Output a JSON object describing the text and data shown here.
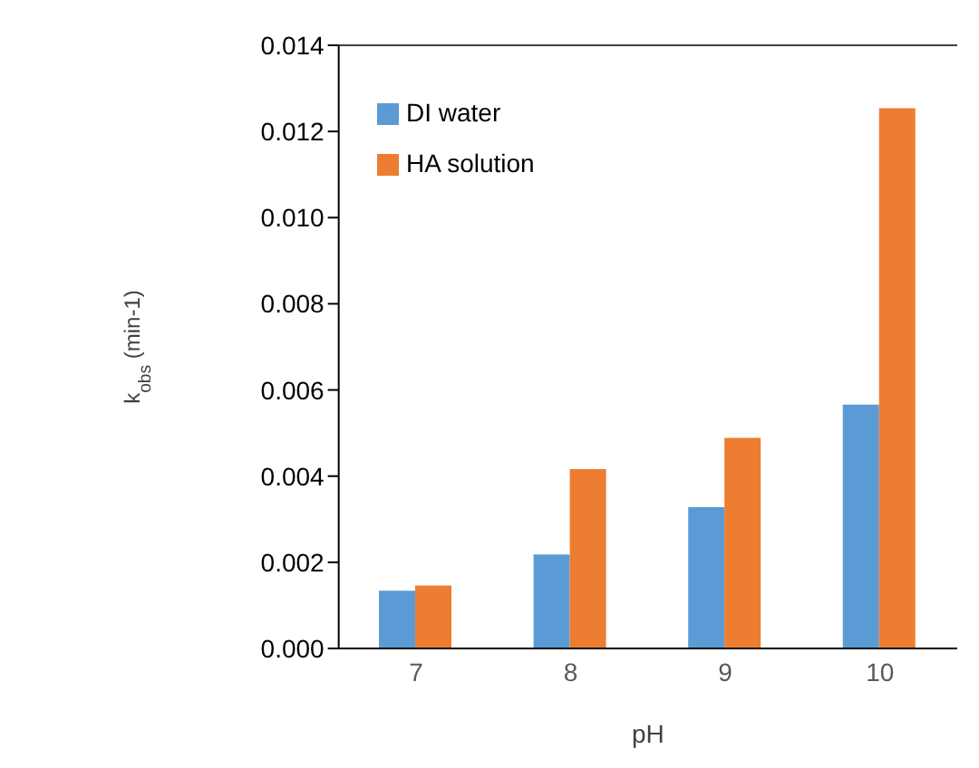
{
  "chart_data": {
    "type": "bar",
    "xlabel": "pH",
    "ylabel": "k$_{obs}$ (min-1)",
    "categories": [
      "7",
      "8",
      "9",
      "10"
    ],
    "series": [
      {
        "name": "DI water",
        "color": "#5b9bd5",
        "values": [
          0.00134,
          0.00218,
          0.00328,
          0.00566
        ]
      },
      {
        "name": "HA solution",
        "color": "#ed7d31",
        "values": [
          0.00146,
          0.00416,
          0.00489,
          0.01254
        ]
      }
    ],
    "ylim": [
      0,
      0.014
    ],
    "yticks": [
      {
        "value": 0,
        "label": "0.000"
      },
      {
        "value": 0.002,
        "label": "0.002"
      },
      {
        "value": 0.004,
        "label": "0.004"
      },
      {
        "value": 0.006,
        "label": "0.006"
      },
      {
        "value": 0.008,
        "label": "0.008"
      },
      {
        "value": 0.01,
        "label": "0.010"
      },
      {
        "value": 0.012,
        "label": "0.012"
      },
      {
        "value": 0.014,
        "label": "0.014"
      }
    ],
    "legend": "top left",
    "grid": false
  }
}
